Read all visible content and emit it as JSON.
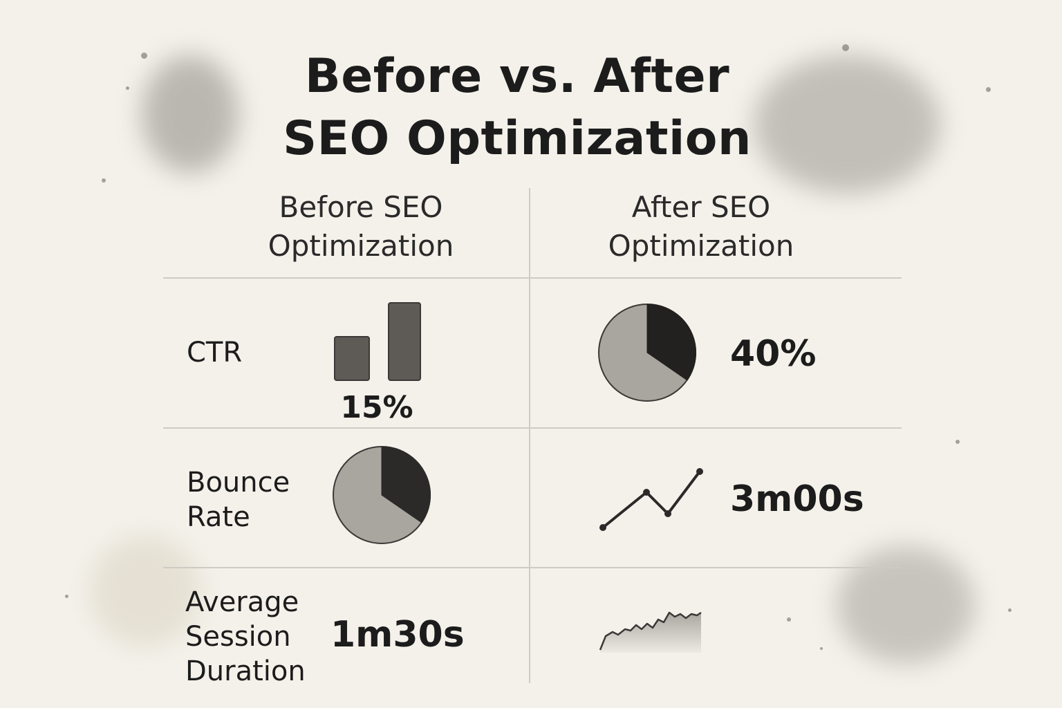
{
  "title": {
    "line1": "Before vs. After",
    "line2": "SEO Optimization"
  },
  "columns": {
    "before": {
      "line1": "Before SEO",
      "line2": "Optimization"
    },
    "after": {
      "line1": "After SEO",
      "line2": "Optimization"
    }
  },
  "rows": [
    {
      "metric": [
        "CTR"
      ],
      "before_value": "15%",
      "after_value": "40%"
    },
    {
      "metric": [
        "Bounce",
        "Rate"
      ],
      "before_value": "",
      "after_value": "3m00s"
    },
    {
      "metric": [
        "Average",
        "Session",
        "Duration"
      ],
      "before_value": "1m30s",
      "after_value": ""
    }
  ],
  "icons": {
    "ctr_before": "bar-chart-icon",
    "ctr_after": "pie-chart-icon",
    "bounce_before": "pie-chart-icon",
    "bounce_after": "line-chart-icon",
    "session_after": "area-chart-icon"
  },
  "colors": {
    "background": "#f4f1ea",
    "dark_fill": "#2b2a29",
    "mid_fill": "#a9a6a0",
    "bar_fill": "#5e5b57"
  }
}
